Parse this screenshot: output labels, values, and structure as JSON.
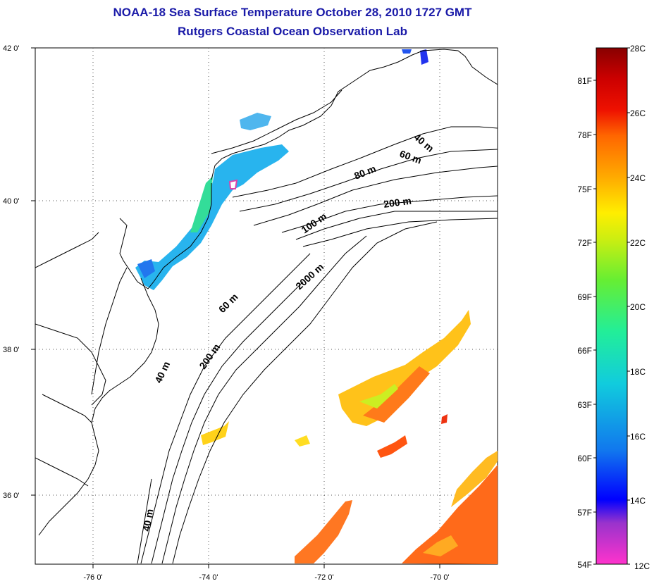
{
  "title": {
    "line1": "NOAA-18 Sea Surface Temperature October 28, 2010 1727 GMT",
    "line2": "Rutgers Coastal Ocean Observation Lab"
  },
  "map": {
    "lat_labels": [
      "42 0'",
      "40 0'",
      "38 0'",
      "36 0'"
    ],
    "lon_labels": [
      "-76 0'",
      "-74 0'",
      "-72 0'",
      "-70 0'"
    ],
    "isobath_labels": [
      "40 m",
      "60 m",
      "80 m",
      "200 m",
      "100 m",
      "2000 m",
      "60 m",
      "40 m",
      "200 m",
      "40 m"
    ],
    "grid": "dotted"
  },
  "colorbar": {
    "celsius_labels": [
      "28C",
      "26C",
      "24C",
      "22C",
      "20C",
      "18C",
      "16C",
      "14C",
      "12C"
    ],
    "fahrenheit_labels": [
      "81F",
      "78F",
      "75F",
      "72F",
      "69F",
      "66F",
      "63F",
      "60F",
      "57F",
      "54F"
    ],
    "colors": [
      "#ff33cc",
      "#9933cc",
      "#0000ff",
      "#1177ee",
      "#11ccdd",
      "#22ee99",
      "#66ee33",
      "#ccee11",
      "#ffee00",
      "#ffaa00",
      "#ff6600",
      "#ee1100",
      "#cc0000",
      "#880000"
    ]
  },
  "colors": {
    "title": "#1a1aa8",
    "land_line": "#000000"
  }
}
